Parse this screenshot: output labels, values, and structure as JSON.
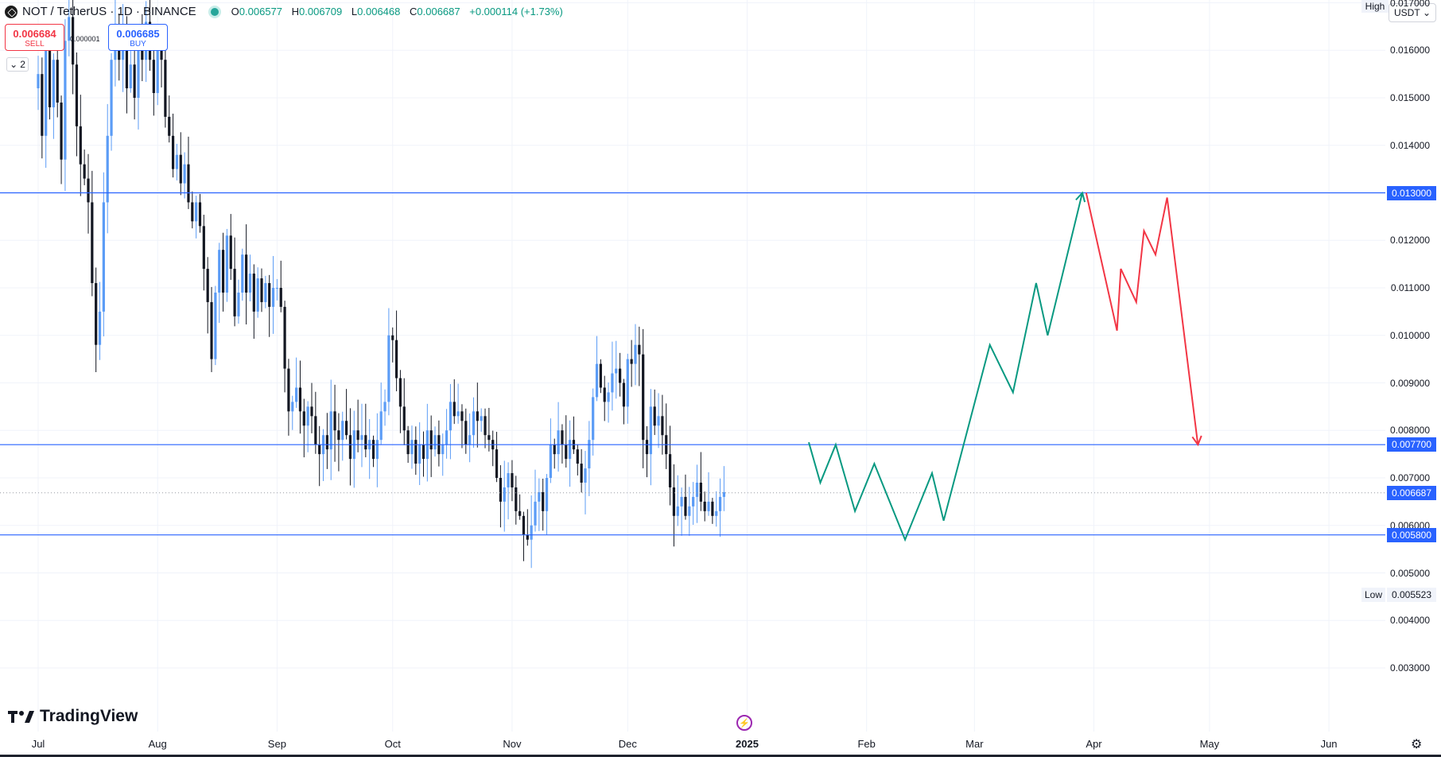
{
  "header": {
    "symbol_title": "NOT / TetherUS · 1D · BINANCE",
    "ohlc": {
      "o_label": "O",
      "o": "0.006577",
      "h_label": "H",
      "h": "0.006709",
      "l_label": "L",
      "l": "0.006468",
      "c_label": "C",
      "c": "0.006687",
      "change": "+0.000114 (+1.73%)"
    }
  },
  "trade": {
    "sell_price": "0.006684",
    "sell_label": "SELL",
    "buy_price": "0.006685",
    "buy_label": "BUY",
    "spread": "0.000001"
  },
  "indicators_toggle": {
    "count": "2",
    "icon": "chevron-down-icon"
  },
  "price_axis": {
    "currency": "USDT",
    "high_label": "High",
    "low_label": "Low",
    "low_value": "0.005523",
    "ticks": [
      {
        "value": 0.017,
        "label": "0.017000"
      },
      {
        "value": 0.016,
        "label": "0.016000"
      },
      {
        "value": 0.015,
        "label": "0.015000"
      },
      {
        "value": 0.014,
        "label": "0.014000"
      },
      {
        "value": 0.012,
        "label": "0.012000"
      },
      {
        "value": 0.011,
        "label": "0.011000"
      },
      {
        "value": 0.01,
        "label": "0.010000"
      },
      {
        "value": 0.009,
        "label": "0.009000"
      },
      {
        "value": 0.008,
        "label": "0.008000"
      },
      {
        "value": 0.007,
        "label": "0.007000"
      },
      {
        "value": 0.006,
        "label": "0.006000"
      },
      {
        "value": 0.005,
        "label": "0.005000"
      },
      {
        "value": 0.004,
        "label": "0.004000"
      },
      {
        "value": 0.003,
        "label": "0.003000"
      }
    ],
    "levels": [
      {
        "value": 0.013,
        "label": "0.013000"
      },
      {
        "value": 0.0077,
        "label": "0.007700"
      },
      {
        "value": 0.0058,
        "label": "0.005800"
      }
    ],
    "current": {
      "value": 0.006687,
      "label": "0.006687"
    }
  },
  "time_axis": {
    "labels": [
      {
        "text": "Jul",
        "day": 0,
        "bold": false
      },
      {
        "text": "Aug",
        "day": 31,
        "bold": false
      },
      {
        "text": "Sep",
        "day": 62,
        "bold": false
      },
      {
        "text": "Oct",
        "day": 92,
        "bold": false
      },
      {
        "text": "Nov",
        "day": 123,
        "bold": false
      },
      {
        "text": "Dec",
        "day": 153,
        "bold": false
      },
      {
        "text": "2025",
        "day": 184,
        "bold": true
      },
      {
        "text": "Feb",
        "day": 215,
        "bold": false
      },
      {
        "text": "Mar",
        "day": 243,
        "bold": false
      },
      {
        "text": "Apr",
        "day": 274,
        "bold": false
      },
      {
        "text": "May",
        "day": 304,
        "bold": false
      },
      {
        "text": "Jun",
        "day": 335,
        "bold": false
      }
    ]
  },
  "chart_data": {
    "type": "candlestick",
    "symbol": "NOT / TetherUS",
    "interval": "1D",
    "exchange": "BINANCE",
    "x_start": "2024-06-21",
    "ylim": [
      0.0027,
      0.0183
    ],
    "colors": {
      "up": "#5b9cf6",
      "down": "#131722",
      "level": "#2962ff",
      "projection_up": "#089981",
      "projection_down": "#f23645"
    },
    "horizontal_levels": [
      0.013,
      0.0077,
      0.0058
    ],
    "closes": [
      0.0155,
      0.0142,
      0.016,
      0.0148,
      0.0158,
      0.0149,
      0.0137,
      0.0162,
      0.0167,
      0.0157,
      0.0144,
      0.0136,
      0.0133,
      0.0128,
      0.0111,
      0.0098,
      0.0105,
      0.0128,
      0.0142,
      0.0158,
      0.0165,
      0.0158,
      0.0164,
      0.0152,
      0.0157,
      0.015,
      0.0162,
      0.0158,
      0.0166,
      0.0158,
      0.0151,
      0.016,
      0.0158,
      0.0146,
      0.0142,
      0.0135,
      0.0138,
      0.0132,
      0.0136,
      0.0128,
      0.0124,
      0.0128,
      0.0123,
      0.0114,
      0.0107,
      0.0095,
      0.0109,
      0.0118,
      0.0109,
      0.0121,
      0.0114,
      0.0104,
      0.0109,
      0.0117,
      0.0109,
      0.0113,
      0.0105,
      0.0112,
      0.0107,
      0.0111,
      0.0106,
      0.011,
      0.011,
      0.0106,
      0.0093,
      0.0084,
      0.0086,
      0.0089,
      0.0084,
      0.0081,
      0.0085,
      0.0083,
      0.0077,
      0.0075,
      0.0079,
      0.0076,
      0.0084,
      0.008,
      0.0078,
      0.0082,
      0.0079,
      0.0074,
      0.008,
      0.0078,
      0.0079,
      0.0076,
      0.0078,
      0.0074,
      0.0078,
      0.0084,
      0.0086,
      0.01,
      0.0099,
      0.0091,
      0.0085,
      0.008,
      0.0075,
      0.0078,
      0.0073,
      0.0077,
      0.0074,
      0.008,
      0.0076,
      0.0079,
      0.0075,
      0.0077,
      0.008,
      0.0086,
      0.0083,
      0.0084,
      0.0082,
      0.0077,
      0.0079,
      0.0084,
      0.0082,
      0.0083,
      0.0079,
      0.0078,
      0.0076,
      0.007,
      0.0065,
      0.0068,
      0.0071,
      0.0068,
      0.0063,
      0.0062,
      0.0058,
      0.0057,
      0.006,
      0.0065,
      0.0067,
      0.0063,
      0.007,
      0.0077,
      0.0075,
      0.008,
      0.0077,
      0.0074,
      0.0078,
      0.0076,
      0.0073,
      0.0069,
      0.0072,
      0.0078,
      0.0087,
      0.0094,
      0.0089,
      0.0086,
      0.0088,
      0.0092,
      0.0093,
      0.009,
      0.0085,
      0.0095,
      0.0094,
      0.0098,
      0.0096,
      0.0078,
      0.0075,
      0.0085,
      0.0081,
      0.0083,
      0.0079,
      0.0075,
      0.0068,
      0.0062,
      0.0064,
      0.0066,
      0.0062,
      0.0064,
      0.0066,
      0.0069,
      0.0065,
      0.0063,
      0.0065,
      0.0062,
      0.0063,
      0.0066,
      0.0067
    ],
    "projection_up": [
      {
        "x": "2025-01-07",
        "y": 0.00775
      },
      {
        "x": "2025-01-10",
        "y": 0.0069
      },
      {
        "x": "2025-01-14",
        "y": 0.0077
      },
      {
        "x": "2025-01-19",
        "y": 0.0063
      },
      {
        "x": "2025-01-24",
        "y": 0.0073
      },
      {
        "x": "2025-02-01",
        "y": 0.0057
      },
      {
        "x": "2025-02-08",
        "y": 0.0071
      },
      {
        "x": "2025-02-11",
        "y": 0.0061
      },
      {
        "x": "2025-02-23",
        "y": 0.0098
      },
      {
        "x": "2025-03-01",
        "y": 0.0088
      },
      {
        "x": "2025-03-07",
        "y": 0.0111
      },
      {
        "x": "2025-03-10",
        "y": 0.01
      },
      {
        "x": "2025-03-19",
        "y": 0.013
      }
    ],
    "projection_down": [
      {
        "x": "2025-03-20",
        "y": 0.013
      },
      {
        "x": "2025-03-28",
        "y": 0.0101
      },
      {
        "x": "2025-03-29",
        "y": 0.0114
      },
      {
        "x": "2025-04-02",
        "y": 0.0107
      },
      {
        "x": "2025-04-04",
        "y": 0.0122
      },
      {
        "x": "2025-04-07",
        "y": 0.0117
      },
      {
        "x": "2025-04-10",
        "y": 0.0129
      },
      {
        "x": "2025-04-18",
        "y": 0.0077
      }
    ]
  },
  "branding": {
    "logo_text": "TradingView"
  }
}
